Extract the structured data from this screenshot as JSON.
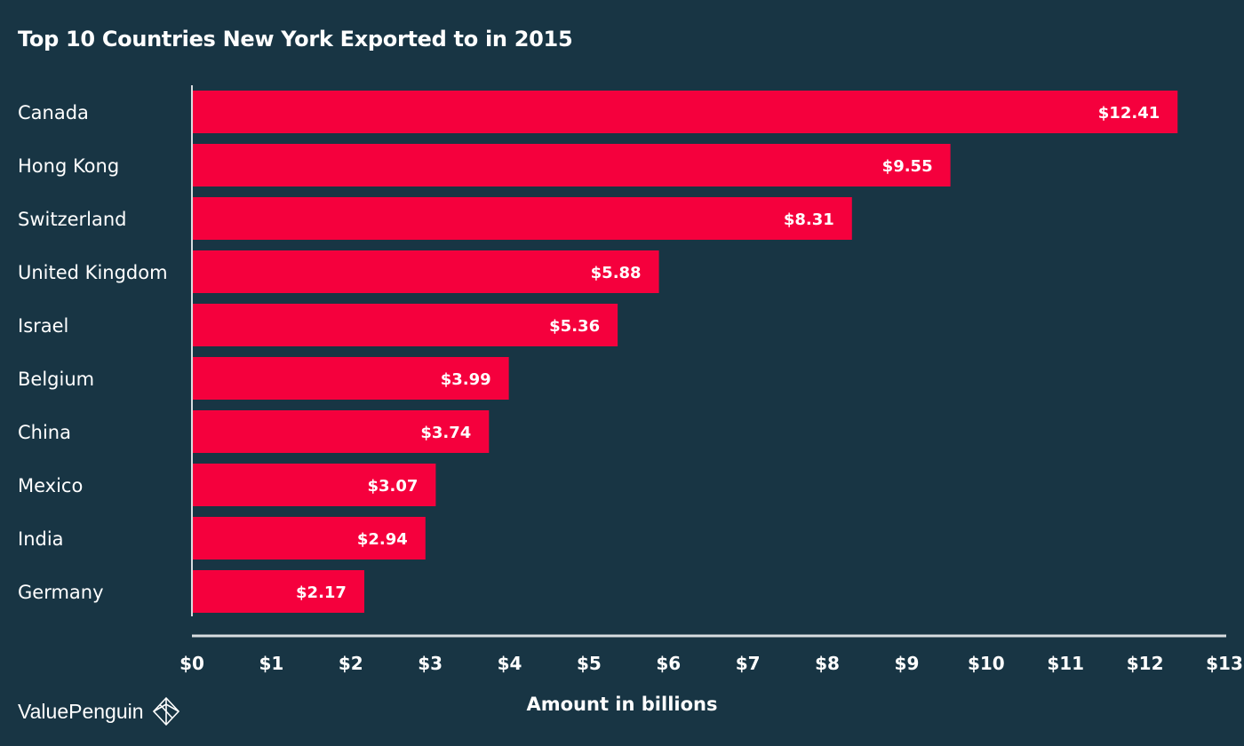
{
  "chart_data": {
    "type": "bar",
    "orientation": "horizontal",
    "title": "Top 10 Countries New York Exported to in 2015",
    "xlabel": "Amount in billions",
    "ylabel": "",
    "categories": [
      "Canada",
      "Hong Kong",
      "Switzerland",
      "United Kingdom",
      "Israel",
      "Belgium",
      "China",
      "Mexico",
      "India",
      "Germany"
    ],
    "values": [
      12.41,
      9.55,
      8.31,
      5.88,
      5.36,
      3.99,
      3.74,
      3.07,
      2.94,
      2.17
    ],
    "value_labels": [
      "$12.41",
      "$9.55",
      "$8.31",
      "$5.88",
      "$5.36",
      "$3.99",
      "$3.74",
      "$3.07",
      "$2.94",
      "$2.17"
    ],
    "xlim": [
      0,
      13
    ],
    "xticks": [
      0,
      1,
      2,
      3,
      4,
      5,
      6,
      7,
      8,
      9,
      10,
      11,
      12,
      13
    ],
    "xtick_labels": [
      "$0",
      "$1",
      "$2",
      "$3",
      "$4",
      "$5",
      "$6",
      "$7",
      "$8",
      "$9",
      "$10",
      "$11",
      "$12",
      "$13"
    ],
    "grid": false,
    "legend": "none"
  },
  "colors": {
    "background": "#183544",
    "bar": "#f5003d",
    "axis": "#d8dde0",
    "text": "#ffffff"
  },
  "brand": {
    "name": "ValuePenguin",
    "icon": "valuepenguin-logo-icon"
  }
}
